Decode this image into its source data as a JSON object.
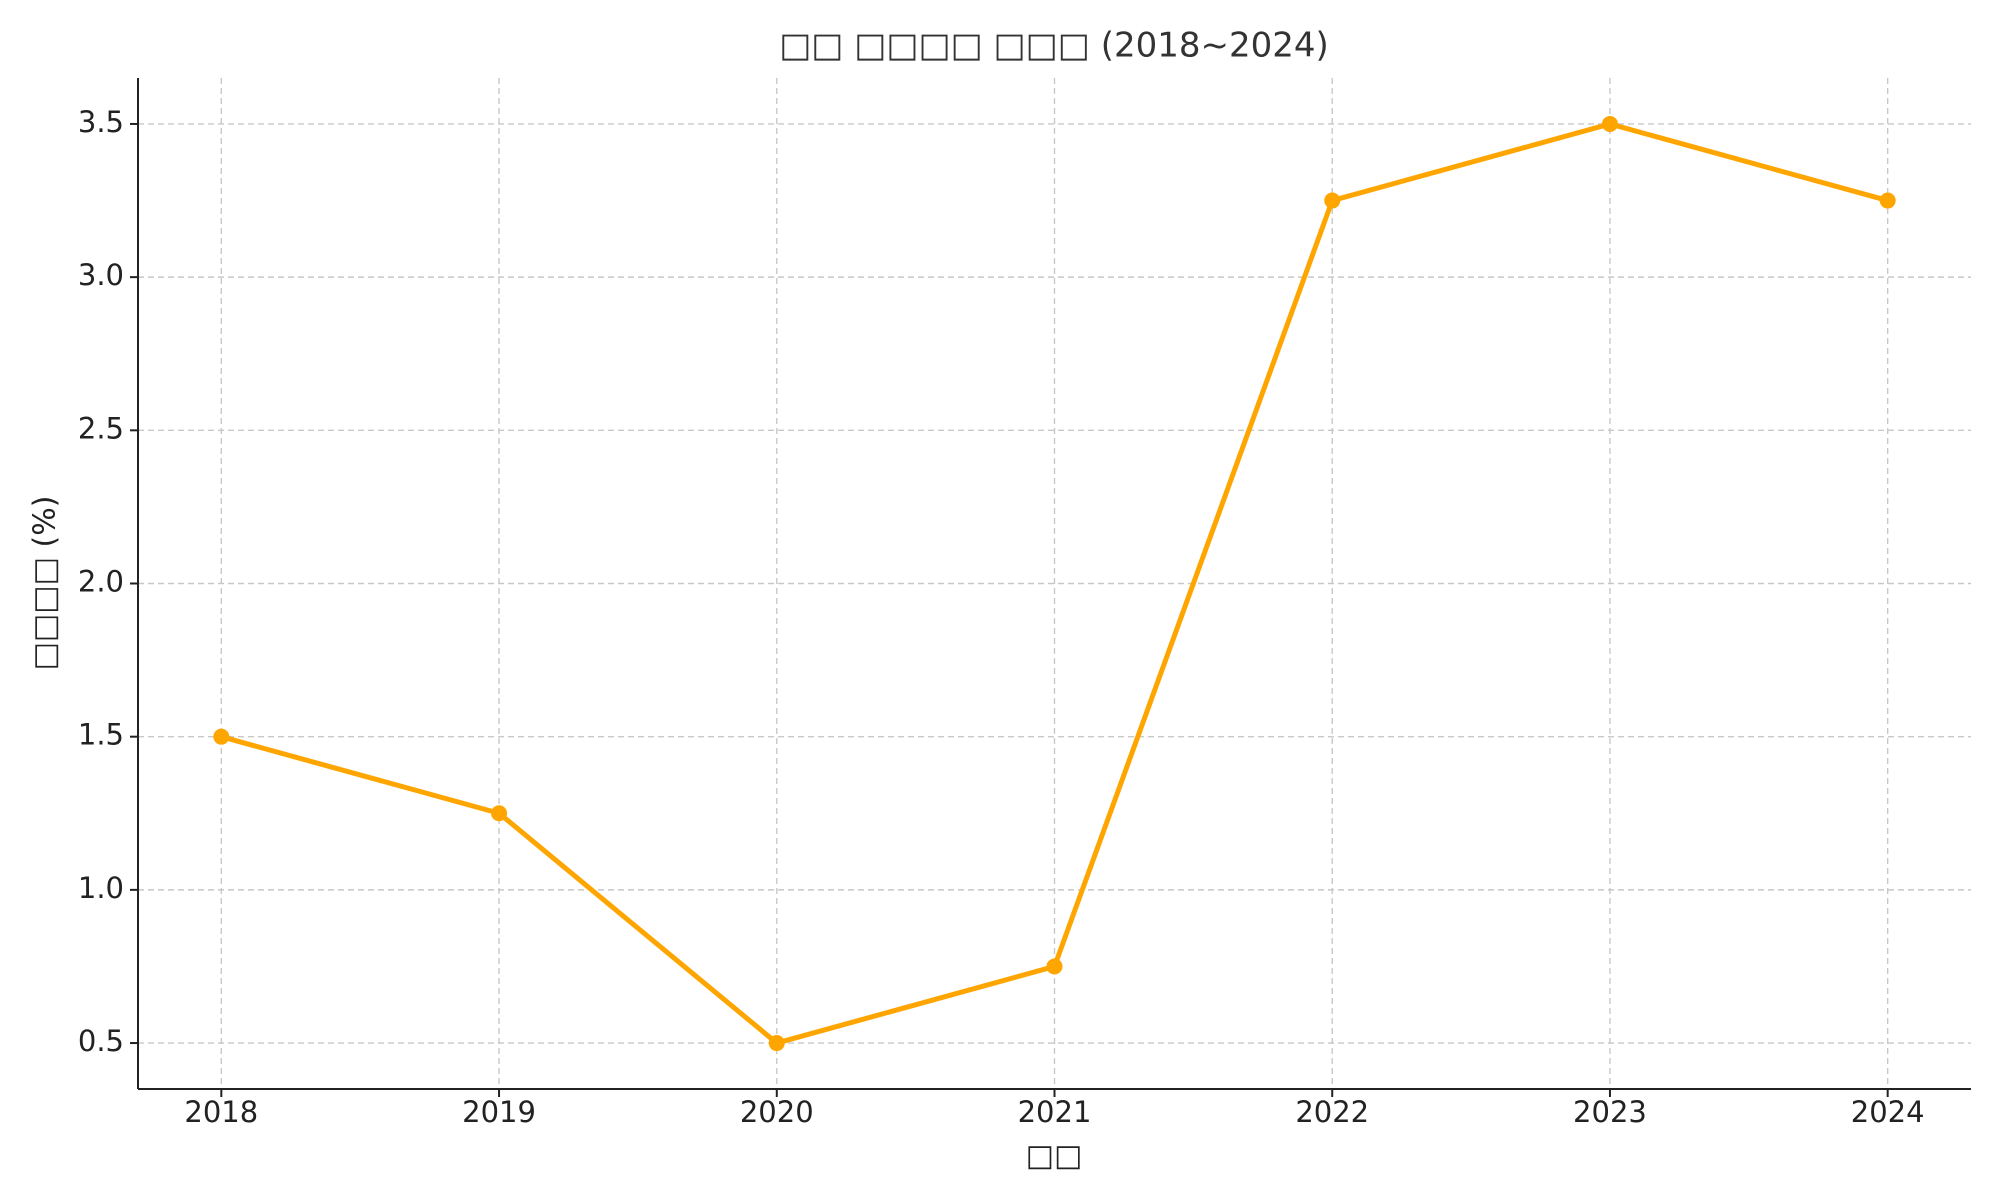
{
  "chart_data": {
    "type": "line",
    "title": "□□ □□□□ □□□ (2018~2024)",
    "x_label": "□□",
    "y_label": "□□□□ (%)",
    "categories": [
      "2018",
      "2019",
      "2020",
      "2021",
      "2022",
      "2023",
      "2024"
    ],
    "series": [
      {
        "name": "□□□□",
        "color": "#ffa500",
        "values": [
          1.5,
          1.25,
          0.5,
          0.75,
          3.25,
          3.5,
          3.25
        ]
      }
    ],
    "ylim": [
      0.35,
      3.65
    ],
    "yticks": [
      0.5,
      {
        "value": 1,
        "label": "1.0"
      },
      1.5,
      {
        "value": 2,
        "label": "2.0"
      },
      2.5,
      {
        "value": 3,
        "label": "3.0"
      },
      3.5
    ],
    "grid": true,
    "markers": true
  }
}
